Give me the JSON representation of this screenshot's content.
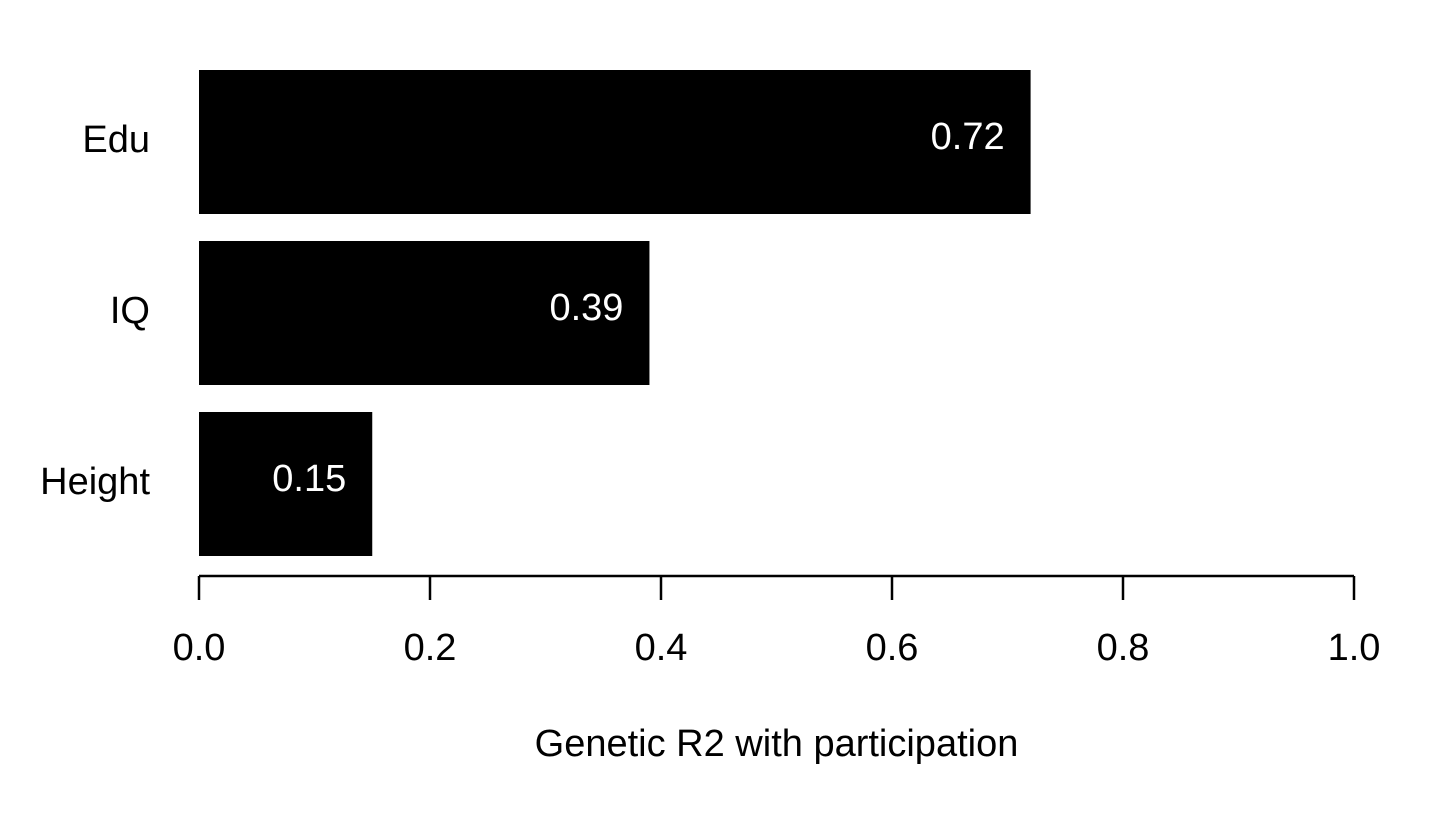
{
  "chart_data": {
    "type": "bar",
    "orientation": "horizontal",
    "categories": [
      "Edu",
      "IQ",
      "Height"
    ],
    "values": [
      0.72,
      0.39,
      0.15
    ],
    "value_labels": [
      "0.72",
      "0.39",
      "0.15"
    ],
    "title": "",
    "xlabel": "Genetic R2 with participation",
    "ylabel": "",
    "xlim": [
      0,
      1
    ],
    "xticks": [
      0,
      0.2,
      0.4,
      0.6,
      0.8,
      1.0
    ],
    "xtick_labels": [
      "0.0",
      "0.2",
      "0.4",
      "0.6",
      "0.8",
      "1.0"
    ],
    "grid": false,
    "legend": "none",
    "colors": {
      "bar": "#000000",
      "bar_label": "#ffffff",
      "axis": "#000000",
      "background": "#ffffff"
    }
  }
}
